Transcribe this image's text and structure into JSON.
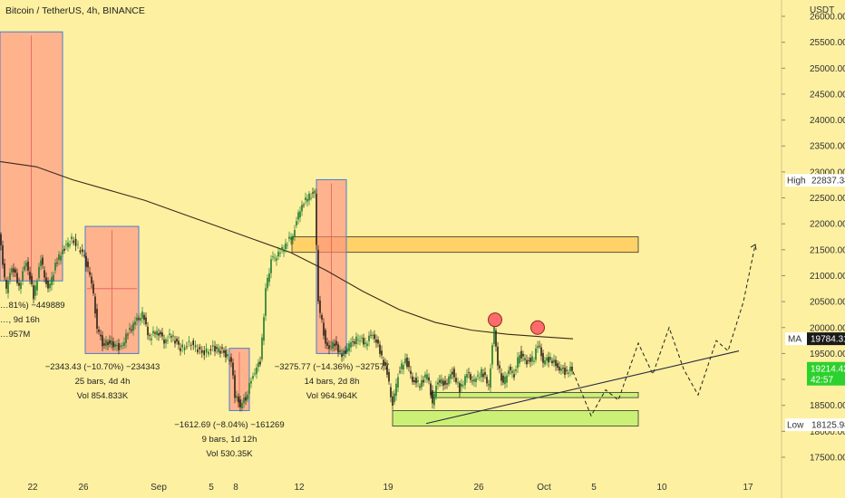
{
  "header": {
    "title": "Bitcoin / TetherUS, 4h, BINANCE",
    "currency": "USDT"
  },
  "chart_data": {
    "type": "candlestick",
    "title": "Bitcoin / TetherUS, 4h, BINANCE",
    "ylabel": "USDT",
    "ylim": [
      17000,
      26400
    ],
    "y_ticks": [
      17500,
      18000,
      18500,
      19000,
      19500,
      20000,
      20500,
      21000,
      21500,
      22000,
      22500,
      23000,
      23500,
      24000,
      24500,
      25000,
      25500,
      26000
    ],
    "x_ticks": [
      "22",
      "26",
      "Sep",
      "5",
      "8",
      "12",
      "19",
      "26",
      "Oct",
      "5",
      "10",
      "17"
    ],
    "price_path": [
      [
        0,
        21800
      ],
      [
        8,
        20700
      ],
      [
        14,
        21200
      ],
      [
        22,
        20800
      ],
      [
        30,
        21300
      ],
      [
        38,
        20600
      ],
      [
        46,
        21300
      ],
      [
        54,
        20700
      ],
      [
        62,
        21200
      ],
      [
        70,
        21500
      ],
      [
        80,
        21700
      ],
      [
        92,
        21450
      ],
      [
        102,
        20900
      ],
      [
        108,
        20000
      ],
      [
        114,
        19700
      ],
      [
        124,
        19700
      ],
      [
        134,
        19600
      ],
      [
        142,
        19900
      ],
      [
        150,
        20100
      ],
      [
        158,
        20250
      ],
      [
        166,
        19800
      ],
      [
        174,
        19950
      ],
      [
        182,
        19750
      ],
      [
        190,
        19850
      ],
      [
        200,
        19600
      ],
      [
        212,
        19700
      ],
      [
        224,
        19500
      ],
      [
        236,
        19600
      ],
      [
        246,
        19550
      ],
      [
        256,
        19350
      ],
      [
        260,
        18700
      ],
      [
        266,
        18500
      ],
      [
        272,
        18650
      ],
      [
        280,
        19100
      ],
      [
        288,
        19350
      ],
      [
        294,
        20700
      ],
      [
        300,
        21300
      ],
      [
        308,
        21400
      ],
      [
        316,
        21600
      ],
      [
        324,
        21800
      ],
      [
        332,
        22300
      ],
      [
        340,
        22500
      ],
      [
        348,
        22600
      ],
      [
        352,
        20500
      ],
      [
        358,
        19900
      ],
      [
        362,
        19600
      ],
      [
        370,
        19700
      ],
      [
        378,
        19450
      ],
      [
        386,
        19650
      ],
      [
        396,
        19800
      ],
      [
        404,
        19700
      ],
      [
        412,
        19900
      ],
      [
        420,
        19550
      ],
      [
        428,
        19100
      ],
      [
        434,
        18500
      ],
      [
        440,
        19100
      ],
      [
        448,
        19400
      ],
      [
        456,
        19000
      ],
      [
        464,
        18900
      ],
      [
        472,
        19100
      ],
      [
        478,
        18550
      ],
      [
        484,
        19000
      ],
      [
        492,
        18900
      ],
      [
        500,
        19150
      ],
      [
        508,
        18800
      ],
      [
        516,
        19100
      ],
      [
        524,
        18950
      ],
      [
        532,
        19150
      ],
      [
        540,
        18900
      ],
      [
        546,
        20000
      ],
      [
        550,
        19300
      ],
      [
        556,
        18900
      ],
      [
        562,
        19200
      ],
      [
        568,
        19100
      ],
      [
        574,
        19500
      ],
      [
        582,
        19350
      ],
      [
        590,
        19400
      ],
      [
        594,
        19700
      ],
      [
        600,
        19350
      ],
      [
        608,
        19400
      ],
      [
        616,
        19250
      ],
      [
        624,
        19150
      ],
      [
        632,
        19200
      ]
    ],
    "moving_average": {
      "label": "MA",
      "value": "19784.31",
      "path": [
        [
          0,
          23200
        ],
        [
          40,
          23100
        ],
        [
          80,
          22850
        ],
        [
          120,
          22650
        ],
        [
          160,
          22450
        ],
        [
          200,
          22200
        ],
        [
          240,
          21950
        ],
        [
          280,
          21700
        ],
        [
          320,
          21450
        ],
        [
          360,
          21100
        ],
        [
          400,
          20700
        ],
        [
          440,
          20350
        ],
        [
          480,
          20100
        ],
        [
          520,
          19950
        ],
        [
          560,
          19870
        ],
        [
          600,
          19820
        ],
        [
          632,
          19784
        ]
      ]
    },
    "high": {
      "label": "High",
      "value": "22837.34"
    },
    "low": {
      "label": "Low",
      "value": "18125.98"
    },
    "last_price": {
      "value": "19214.42",
      "countdown": "42:57"
    },
    "measure_boxes": [
      {
        "top": 25700,
        "bottom": 20900,
        "lines": [
          "…81%) −449889",
          "…, 9d 16h",
          "…957M"
        ]
      },
      {
        "top": 21950,
        "bottom": 19500,
        "lines": [
          "−2343.43 (−10.70%) −234343",
          "25 bars, 4d 4h",
          "Vol 854.833K"
        ]
      },
      {
        "top": 19600,
        "bottom": 18400,
        "lines": [
          "−1612.69 (−8.04%) −161269",
          "9 bars, 1d 12h",
          "Vol 530.35K"
        ]
      },
      {
        "top": 22850,
        "bottom": 19500,
        "lines": [
          "−3275.77 (−14.36%) −327577",
          "14 bars, 2d 8h",
          "Vol 964.964K"
        ]
      }
    ],
    "zones": [
      {
        "color": "#ffd166",
        "top": 21750,
        "bottom": 21450
      },
      {
        "color": "#ccf075",
        "top": 18750,
        "bottom": 18650
      },
      {
        "color": "#ccf075",
        "top": 18400,
        "bottom": 18100
      }
    ],
    "trendline": [
      [
        470,
        18150
      ],
      [
        815,
        19550
      ]
    ],
    "projection_path": [
      [
        632,
        19150
      ],
      [
        652,
        18300
      ],
      [
        668,
        18800
      ],
      [
        682,
        18600
      ],
      [
        704,
        19700
      ],
      [
        720,
        19100
      ],
      [
        738,
        20000
      ],
      [
        754,
        19200
      ],
      [
        770,
        18700
      ],
      [
        790,
        19750
      ],
      [
        803,
        19550
      ],
      [
        820,
        20500
      ],
      [
        833,
        21600
      ]
    ],
    "markers": [
      {
        "price": 20150,
        "color": "#ff6a6a"
      },
      {
        "price": 20000,
        "color": "#ff6a6a"
      }
    ]
  }
}
